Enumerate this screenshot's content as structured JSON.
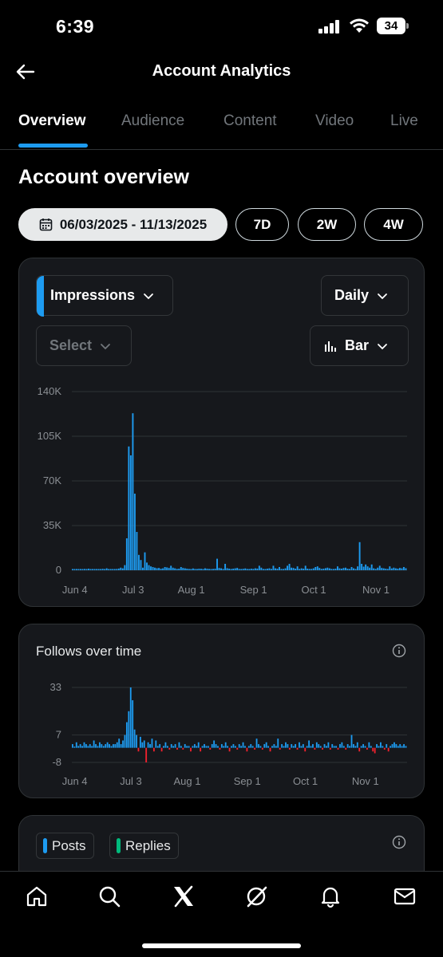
{
  "status": {
    "time": "6:39",
    "battery": "34"
  },
  "header": {
    "title": "Account Analytics"
  },
  "tabs": [
    {
      "label": "Overview",
      "active": true
    },
    {
      "label": "Audience",
      "active": false
    },
    {
      "label": "Content",
      "active": false
    },
    {
      "label": "Video",
      "active": false
    },
    {
      "label": "Live",
      "active": false
    }
  ],
  "overview": {
    "title": "Account overview",
    "date_range": "06/03/2025 - 11/13/2025",
    "ranges": [
      "7D",
      "2W",
      "4W"
    ]
  },
  "impressions_card": {
    "metric_select": "Impressions",
    "interval_select": "Daily",
    "compare_select": "Select",
    "chart_type_select": "Bar",
    "accent_color": "#1d9bf0"
  },
  "follows_card": {
    "title": "Follows over time",
    "positive_color": "#1d9bf0",
    "negative_color": "#f4212e"
  },
  "posts_card": {
    "legend": [
      {
        "label": "Posts",
        "color": "#1d9bf0"
      },
      {
        "label": "Replies",
        "color": "#00ba7c"
      }
    ]
  },
  "chart_data": [
    {
      "type": "bar",
      "y_ticks": [
        "140K",
        "105K",
        "70K",
        "35K",
        "0"
      ],
      "x_ticks": [
        "Jun 4",
        "Jul 3",
        "Aug 1",
        "Sep 1",
        "Oct 1",
        "Nov 1"
      ],
      "ylim": [
        0,
        140000
      ],
      "start_date": "2025-06-03",
      "daily_values": [
        600,
        800,
        700,
        900,
        600,
        700,
        1000,
        800,
        1200,
        900,
        700,
        800,
        600,
        900,
        700,
        1100,
        800,
        1500,
        700,
        600,
        900,
        800,
        1000,
        1300,
        2000,
        1500,
        4000,
        25000,
        97000,
        90000,
        123000,
        60000,
        30000,
        12000,
        8000,
        2000,
        14000,
        6000,
        4000,
        3000,
        2500,
        2000,
        1600,
        1800,
        1200,
        1500,
        2500,
        2200,
        1800,
        3500,
        2000,
        1500,
        1000,
        1200,
        2500,
        1800,
        1500,
        1200,
        1000,
        900,
        1400,
        1000,
        800,
        1200,
        1100,
        900,
        1500,
        1200,
        1000,
        800,
        1000,
        1200,
        9000,
        1800,
        1500,
        1000,
        5000,
        1600,
        1200,
        1000,
        1200,
        1500,
        1800,
        1000,
        900,
        1100,
        1400,
        1000,
        800,
        1200,
        1000,
        1500,
        1300,
        3500,
        2000,
        1000,
        800,
        1200,
        1500,
        1000,
        3500,
        1500,
        1200,
        2500,
        1000,
        800,
        1500,
        3500,
        5000,
        2000,
        1800,
        1200,
        3000,
        1000,
        1500,
        1200,
        3500,
        1200,
        1000,
        1000,
        1500,
        2500,
        3000,
        1800,
        1000,
        1200,
        1600,
        2000,
        1500,
        1000,
        900,
        1200,
        3000,
        1500,
        1200,
        1800,
        2000,
        1200,
        1000,
        2500,
        1500,
        1000,
        3000,
        22000,
        5000,
        2800,
        4500,
        3000,
        2000,
        4500,
        1500,
        1000,
        2000,
        3500,
        1800,
        1500,
        1200,
        1000,
        3000,
        1400,
        2000,
        1500,
        1200,
        1800,
        1500,
        2500,
        1600
      ]
    },
    {
      "type": "bar",
      "y_ticks": [
        "33",
        "7",
        "-8"
      ],
      "x_ticks": [
        "Jun 4",
        "Jul 3",
        "Aug 1",
        "Sep 1",
        "Oct 1",
        "Nov 1"
      ],
      "ylim": [
        -8,
        33
      ],
      "start_date": "2025-06-03",
      "daily_values": [
        2,
        0,
        3,
        1,
        2,
        1,
        3,
        2,
        1,
        2,
        1,
        4,
        2,
        1,
        3,
        2,
        1,
        2,
        3,
        2,
        1,
        2,
        2,
        3,
        5,
        2,
        4,
        7,
        14,
        20,
        33,
        26,
        10,
        7,
        -2,
        6,
        3,
        4,
        -8,
        3,
        2,
        5,
        -2,
        4,
        1,
        2,
        -2,
        1,
        3,
        1,
        -1,
        2,
        1,
        2,
        -1,
        3,
        1,
        -1,
        2,
        1,
        1,
        -2,
        1,
        2,
        1,
        3,
        -2,
        1,
        2,
        1,
        1,
        -1,
        2,
        4,
        2,
        1,
        -1,
        2,
        1,
        3,
        1,
        -2,
        1,
        2,
        1,
        -1,
        2,
        1,
        3,
        1,
        -2,
        1,
        2,
        1,
        -1,
        5,
        2,
        1,
        -1,
        2,
        3,
        1,
        -2,
        1,
        2,
        1,
        5,
        -1,
        2,
        1,
        3,
        2,
        -1,
        2,
        1,
        2,
        -1,
        3,
        1,
        2,
        -2,
        1,
        4,
        1,
        2,
        -1,
        3,
        2,
        1,
        -1,
        2,
        1,
        3,
        -1,
        2,
        1,
        1,
        -1,
        2,
        3,
        1,
        -1,
        2,
        1,
        7,
        2,
        1,
        3,
        -2,
        1,
        2,
        1,
        -1,
        3,
        1,
        -2,
        -3,
        2,
        1,
        3,
        1,
        -1,
        2,
        -2,
        1,
        2,
        3,
        2,
        1,
        2,
        1,
        2,
        1
      ]
    }
  ]
}
